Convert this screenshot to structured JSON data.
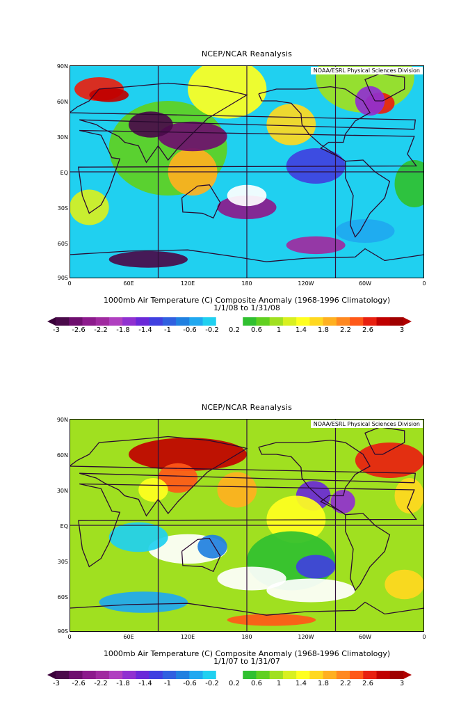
{
  "panels": [
    {
      "id": "jan2008",
      "title": "NCEP/NCAR Reanalysis",
      "credit": "NOAA/ESRL Physical Sciences Division",
      "caption_line1": "1000mb Air Temperature (C) Composite Anomaly (1968-1996 Climatology)",
      "caption_line2": "1/1/08  to 1/31/08"
    },
    {
      "id": "jan2007",
      "title": "NCEP/NCAR Reanalysis",
      "credit": "NOAA/ESRL Physical Sciences Division",
      "caption_line1": "1000mb Air Temperature (C) Composite Anomaly (1968-1996 Climatology)",
      "caption_line2": "1/1/07  to 1/31/07"
    }
  ],
  "lat_labels": [
    "90N",
    "60N",
    "30N",
    "EQ",
    "30S",
    "60S",
    "90S"
  ],
  "lon_labels": [
    "0",
    "60E",
    "120E",
    "180",
    "120W",
    "60W",
    "0"
  ],
  "colorbar": {
    "labels": [
      "-3",
      "-2.6",
      "-2.2",
      "-1.8",
      "-1.4",
      "-1",
      "-0.6",
      "-0.2",
      "0.2",
      "0.6",
      "1",
      "1.4",
      "1.8",
      "2.2",
      "2.6",
      "3"
    ],
    "colors": [
      "#4a0a4a",
      "#6e0e6e",
      "#8c1a8c",
      "#a02aa0",
      "#b040c0",
      "#9030d0",
      "#6a28d8",
      "#4040e0",
      "#3060e0",
      "#2080e0",
      "#20a8f0",
      "#20d0f0",
      "#ffffff",
      "#ffffff",
      "#30c030",
      "#60d020",
      "#a0e020",
      "#d8f020",
      "#ffff20",
      "#ffd820",
      "#ffb020",
      "#ff8820",
      "#ff5818",
      "#e82010",
      "#c00000",
      "#a00000"
    ],
    "under_color": "#3a003a",
    "over_color": "#b00000"
  }
}
